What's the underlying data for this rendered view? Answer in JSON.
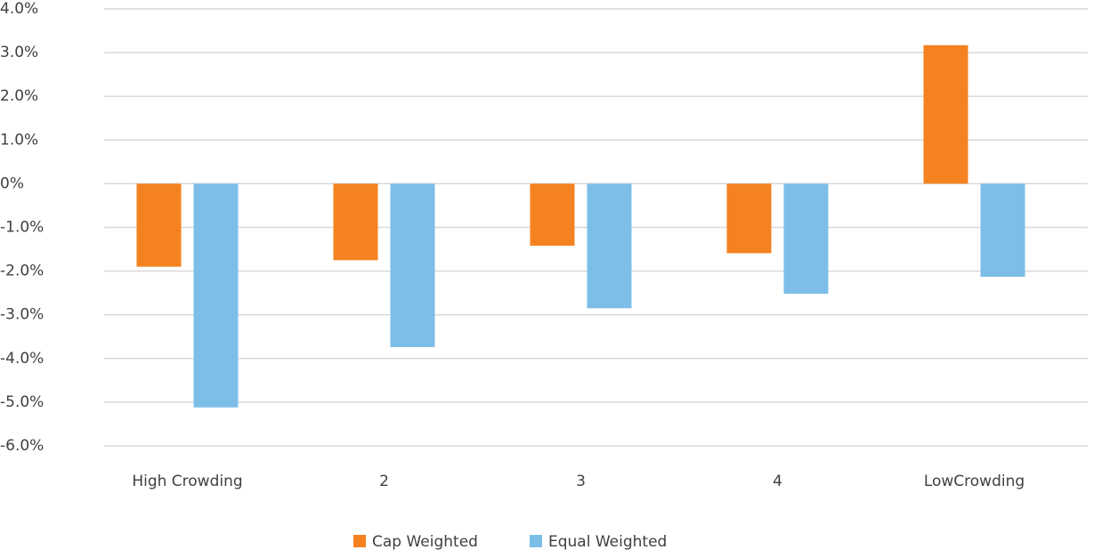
{
  "chart_data": {
    "type": "bar",
    "categories": [
      "High Crowding",
      "2",
      "3",
      "4",
      "LowCrowding"
    ],
    "series": [
      {
        "name": "Cap Weighted",
        "color": "#f58220",
        "values": [
          -1.9,
          -1.75,
          -1.42,
          -1.59,
          3.17
        ]
      },
      {
        "name": "Equal Weighted",
        "color": "#7dbee8",
        "values": [
          -5.12,
          -3.74,
          -2.85,
          -2.52,
          -2.13
        ]
      }
    ],
    "ylim": [
      -6,
      4
    ],
    "yticks": [
      {
        "value": 4,
        "label": "4.0%"
      },
      {
        "value": 3,
        "label": "3.0%"
      },
      {
        "value": 2,
        "label": "2.0%"
      },
      {
        "value": 1,
        "label": "1.0%"
      },
      {
        "value": 0,
        "label": "0%"
      },
      {
        "value": -1,
        "label": "-1.0%"
      },
      {
        "value": -2,
        "label": "-2.0%"
      },
      {
        "value": -3,
        "label": "-3.0%"
      },
      {
        "value": -4,
        "label": "-4.0%"
      },
      {
        "value": -5,
        "label": "-5.0%"
      },
      {
        "value": -6,
        "label": "-6.0%"
      }
    ],
    "grid": true,
    "legend": "bottom"
  }
}
